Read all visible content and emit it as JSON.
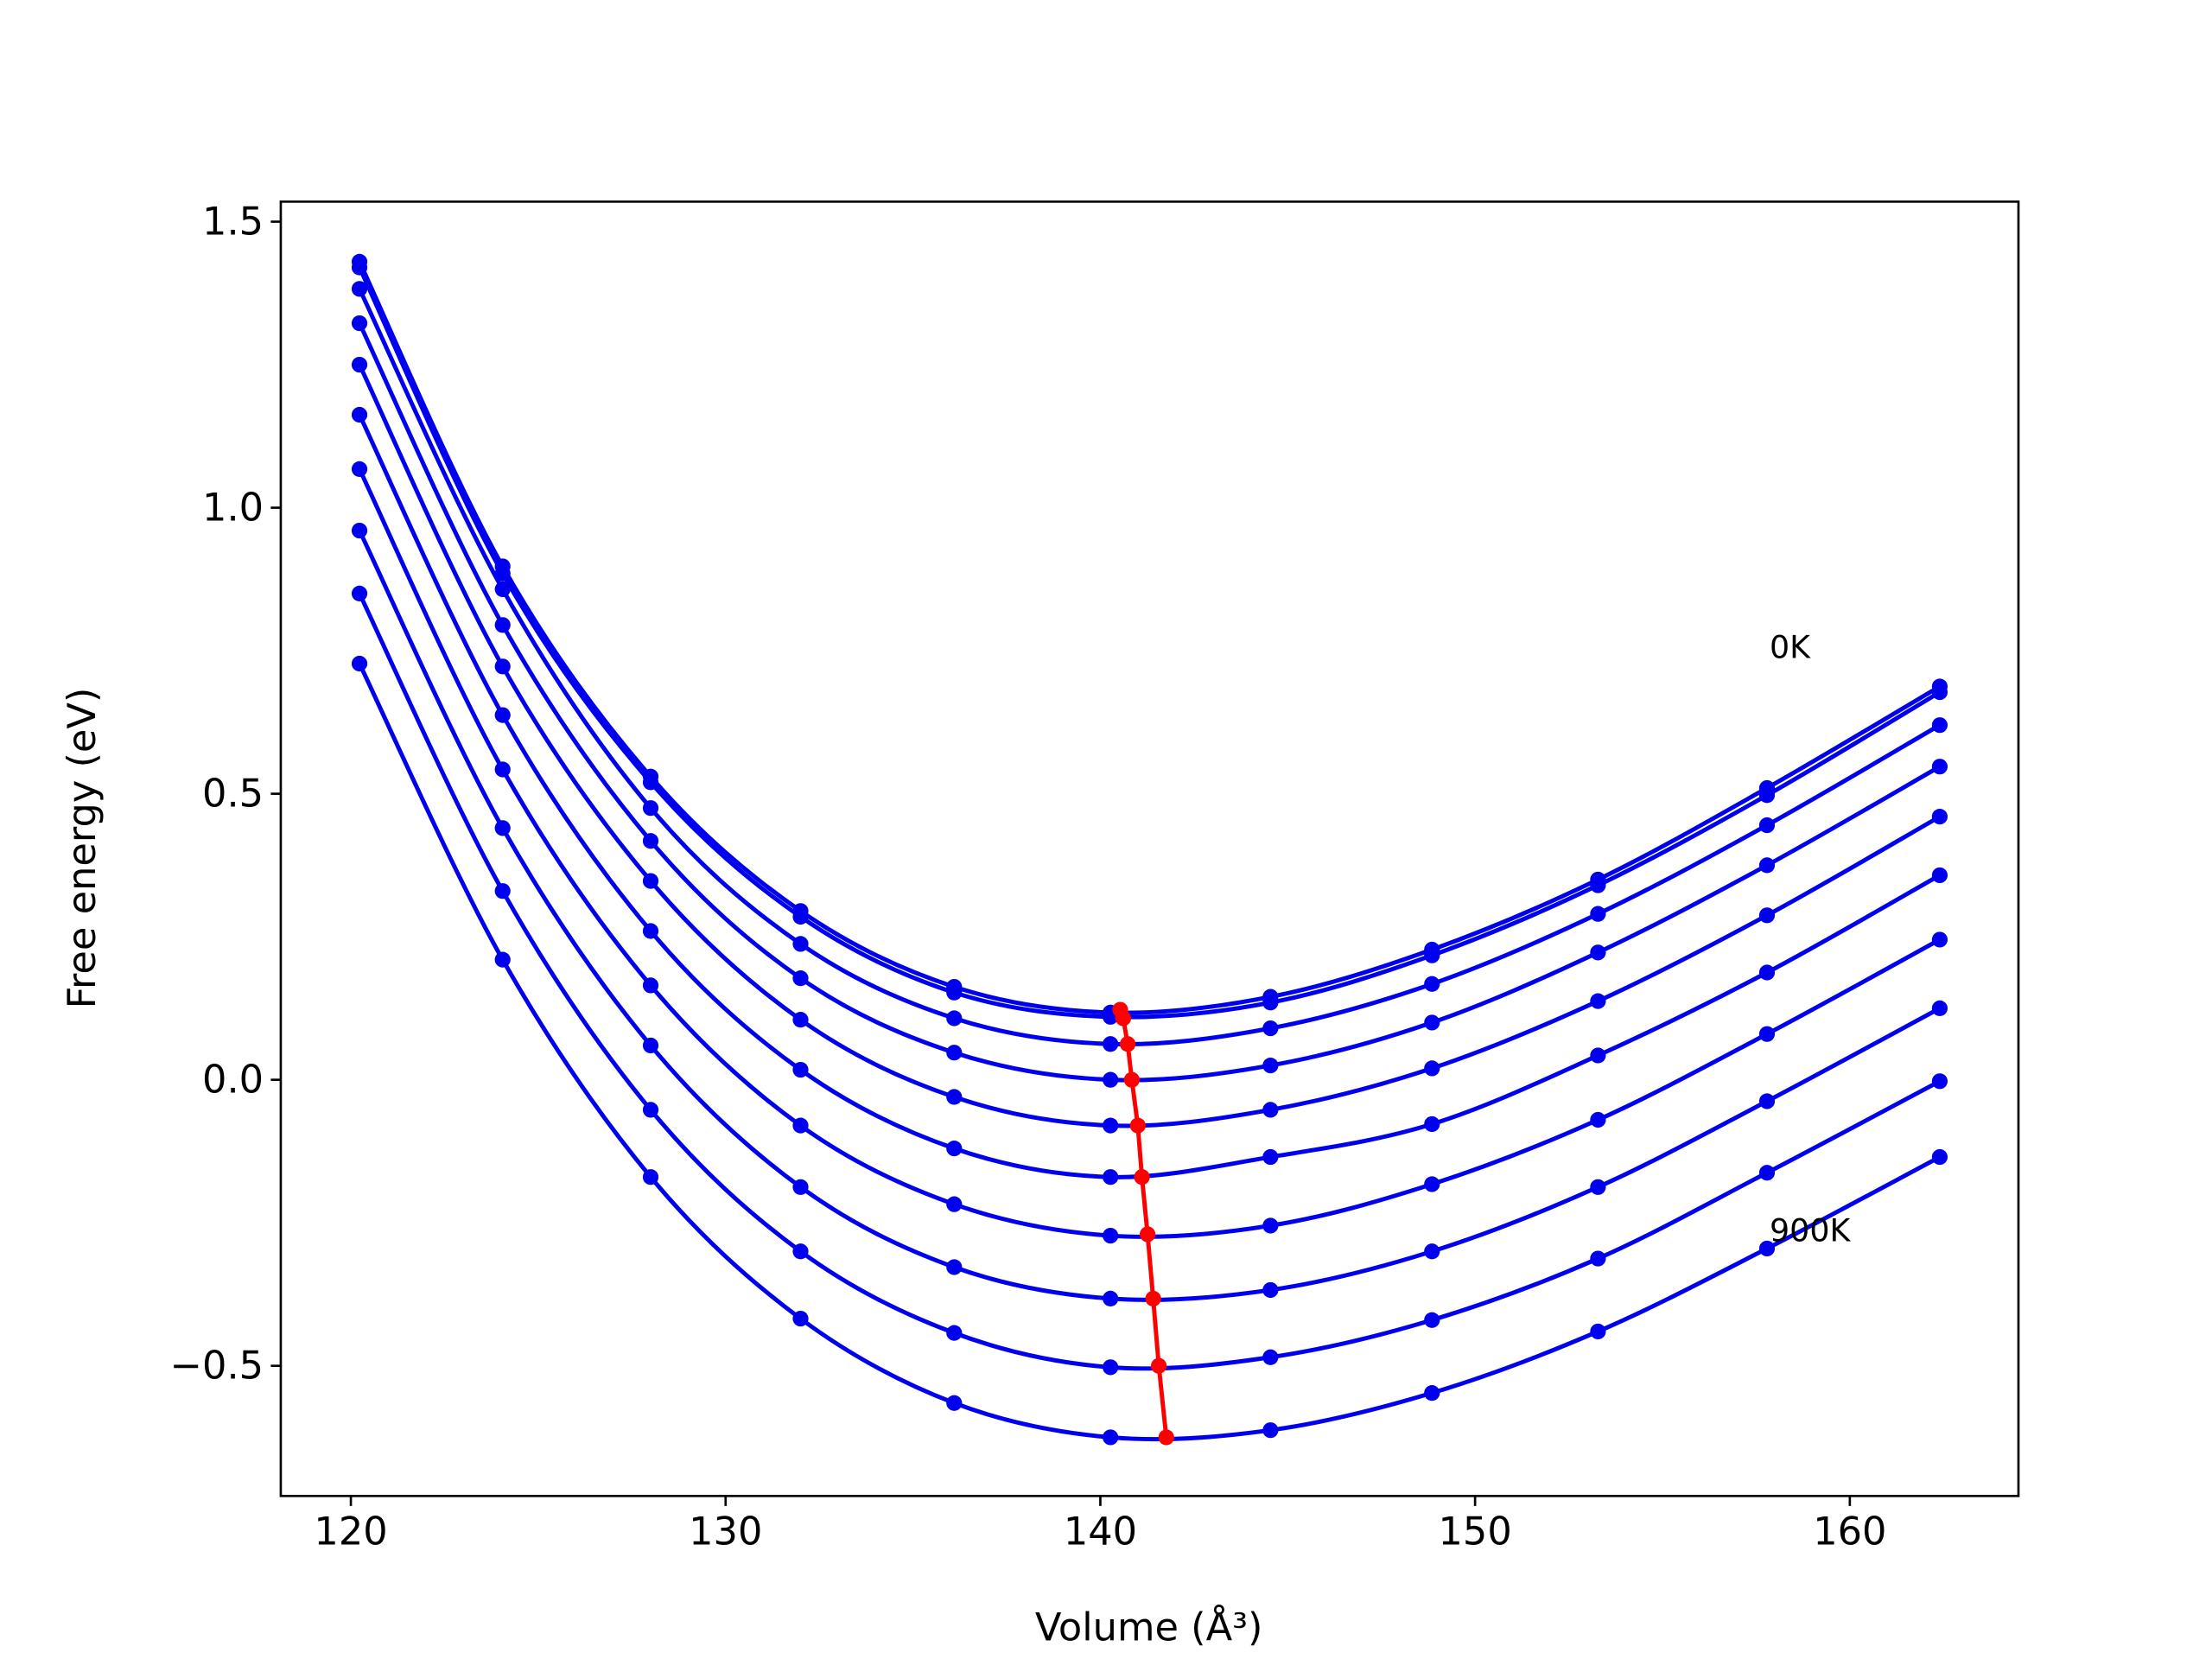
{
  "chart_data": {
    "type": "line",
    "xlabel": "Volume (Å³)",
    "ylabel": "Free energy (eV)",
    "x": [
      120.23,
      124.05,
      128.0,
      132.0,
      136.1,
      140.27,
      144.54,
      148.85,
      153.28,
      157.79,
      162.4
    ],
    "series": [
      {
        "color": "#0000ee",
        "values": [
          1.43,
          0.8975,
          0.53,
          0.295,
          0.1625,
          0.1175,
          0.145,
          0.2275,
          0.35,
          0.51,
          0.6875
        ]
      },
      {
        "color": "#0000ee",
        "values": [
          1.42,
          0.885,
          0.52,
          0.285,
          0.1525,
          0.11,
          0.135,
          0.2175,
          0.34,
          0.4975,
          0.6775
        ]
      },
      {
        "color": "#0000ee",
        "values": [
          1.3825,
          0.8575,
          0.475,
          0.2375,
          0.1075,
          0.0625,
          0.09,
          0.1675,
          0.29,
          0.445,
          0.62
        ]
      },
      {
        "color": "#0000ee",
        "values": [
          1.3225,
          0.795,
          0.4175,
          0.1775,
          0.0475,
          0.0,
          0.025,
          0.1,
          0.2225,
          0.375,
          0.5475
        ]
      },
      {
        "color": "#0000ee",
        "values": [
          1.25,
          0.7225,
          0.3475,
          0.105,
          -0.03,
          -0.08,
          -0.0525,
          0.02,
          0.1375,
          0.2875,
          0.46
        ]
      },
      {
        "color": "#0000ee",
        "values": [
          1.1625,
          0.6375,
          0.26,
          0.0175,
          -0.12,
          -0.17,
          -0.135,
          -0.0775,
          0.0425,
          0.1875,
          0.3575
        ]
      },
      {
        "color": "#0000ee",
        "values": [
          1.0675,
          0.5425,
          0.165,
          -0.08,
          -0.2175,
          -0.2725,
          -0.255,
          -0.1825,
          -0.07,
          0.08,
          0.245
        ]
      },
      {
        "color": "#0000ee",
        "values": [
          0.96,
          0.44,
          0.06,
          -0.1875,
          -0.3275,
          -0.3825,
          -0.3675,
          -0.3,
          -0.1875,
          -0.0375,
          0.125
        ]
      },
      {
        "color": "#0000ee",
        "values": [
          0.85,
          0.33,
          -0.0525,
          -0.3,
          -0.4425,
          -0.5025,
          -0.485,
          -0.42,
          -0.3125,
          -0.1625,
          -0.0025
        ]
      },
      {
        "color": "#0000ee",
        "values": [
          0.7275,
          0.21,
          -0.17,
          -0.4175,
          -0.565,
          -0.625,
          -0.6125,
          -0.5475,
          -0.44,
          -0.295,
          -0.135
        ]
      },
      {
        "color": "#ff0000",
        "x": [
          140.53,
          140.61,
          140.73,
          140.84,
          141.0,
          141.11,
          141.26,
          141.41,
          141.56,
          141.76
        ],
        "values": [
          0.1225,
          0.1075,
          0.0625,
          0.0,
          -0.08,
          -0.17,
          -0.27,
          -0.3825,
          -0.5,
          -0.625
        ]
      }
    ],
    "annotations": [
      {
        "text": "0K",
        "x": 157.86,
        "y": 0.7575
      },
      {
        "text": "900K",
        "x": 157.86,
        "y": -0.2625
      }
    ],
    "xlim": [
      118.13,
      164.5
    ],
    "ylim": [
      -0.7275,
      1.535
    ],
    "xticks": [
      120,
      130,
      140,
      150,
      160
    ],
    "yticks": [
      {
        "value": -0.5,
        "label": "−0.5"
      },
      {
        "value": 0,
        "label": "0.0"
      },
      0.5,
      {
        "value": 1,
        "label": "1.0"
      },
      1.5
    ],
    "grid": false
  }
}
